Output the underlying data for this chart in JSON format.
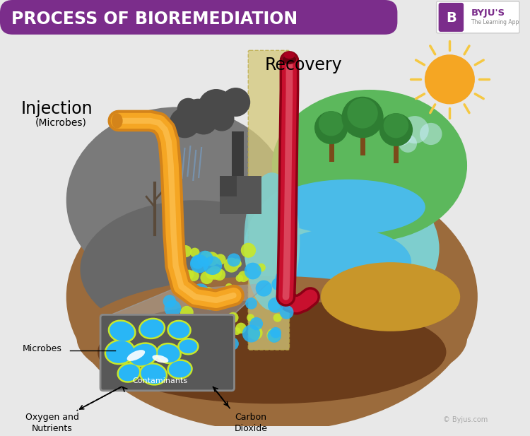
{
  "title": "PROCESS OF BIOREMEDIATION",
  "title_bg_color": "#7B2D8B",
  "title_text_color": "#FFFFFF",
  "bg_color": "#E8E8E8",
  "byju_color": "#7B2D8B",
  "injection_label": "Injection",
  "injection_sub": "(Microbes)",
  "recovery_label": "Recovery",
  "microbes_label": "Microbes",
  "contaminants_label": "Contaminants",
  "oxygen_label": "Oxygen and\nNutrients",
  "co2_label": "Carbon\nDioxide",
  "pipe_orange_color": "#F5A623",
  "pipe_orange_dark": "#D4841A",
  "pipe_red_color": "#C8102E",
  "pipe_red_light": "#E8687A",
  "sun_color": "#F5A623",
  "sun_ray_color": "#F5C842",
  "earth_brown": "#9B6B3C",
  "earth_dark_brown": "#6B3C1A",
  "earth_gold": "#C8962A",
  "ground_gray": "#888888",
  "water_blue": "#4ABBE8",
  "water_teal": "#5BC8C8",
  "grass_green": "#5CB85C",
  "grass_dark": "#3A8A3A",
  "pollution_gray": "#606060",
  "microbe_blue": "#29B6F6",
  "microbe_yellow": "#C8E82A",
  "zoom_box_bg": "#606060",
  "center_strip_color": "#D4C87A",
  "copyright_text": "© Byjus.com"
}
